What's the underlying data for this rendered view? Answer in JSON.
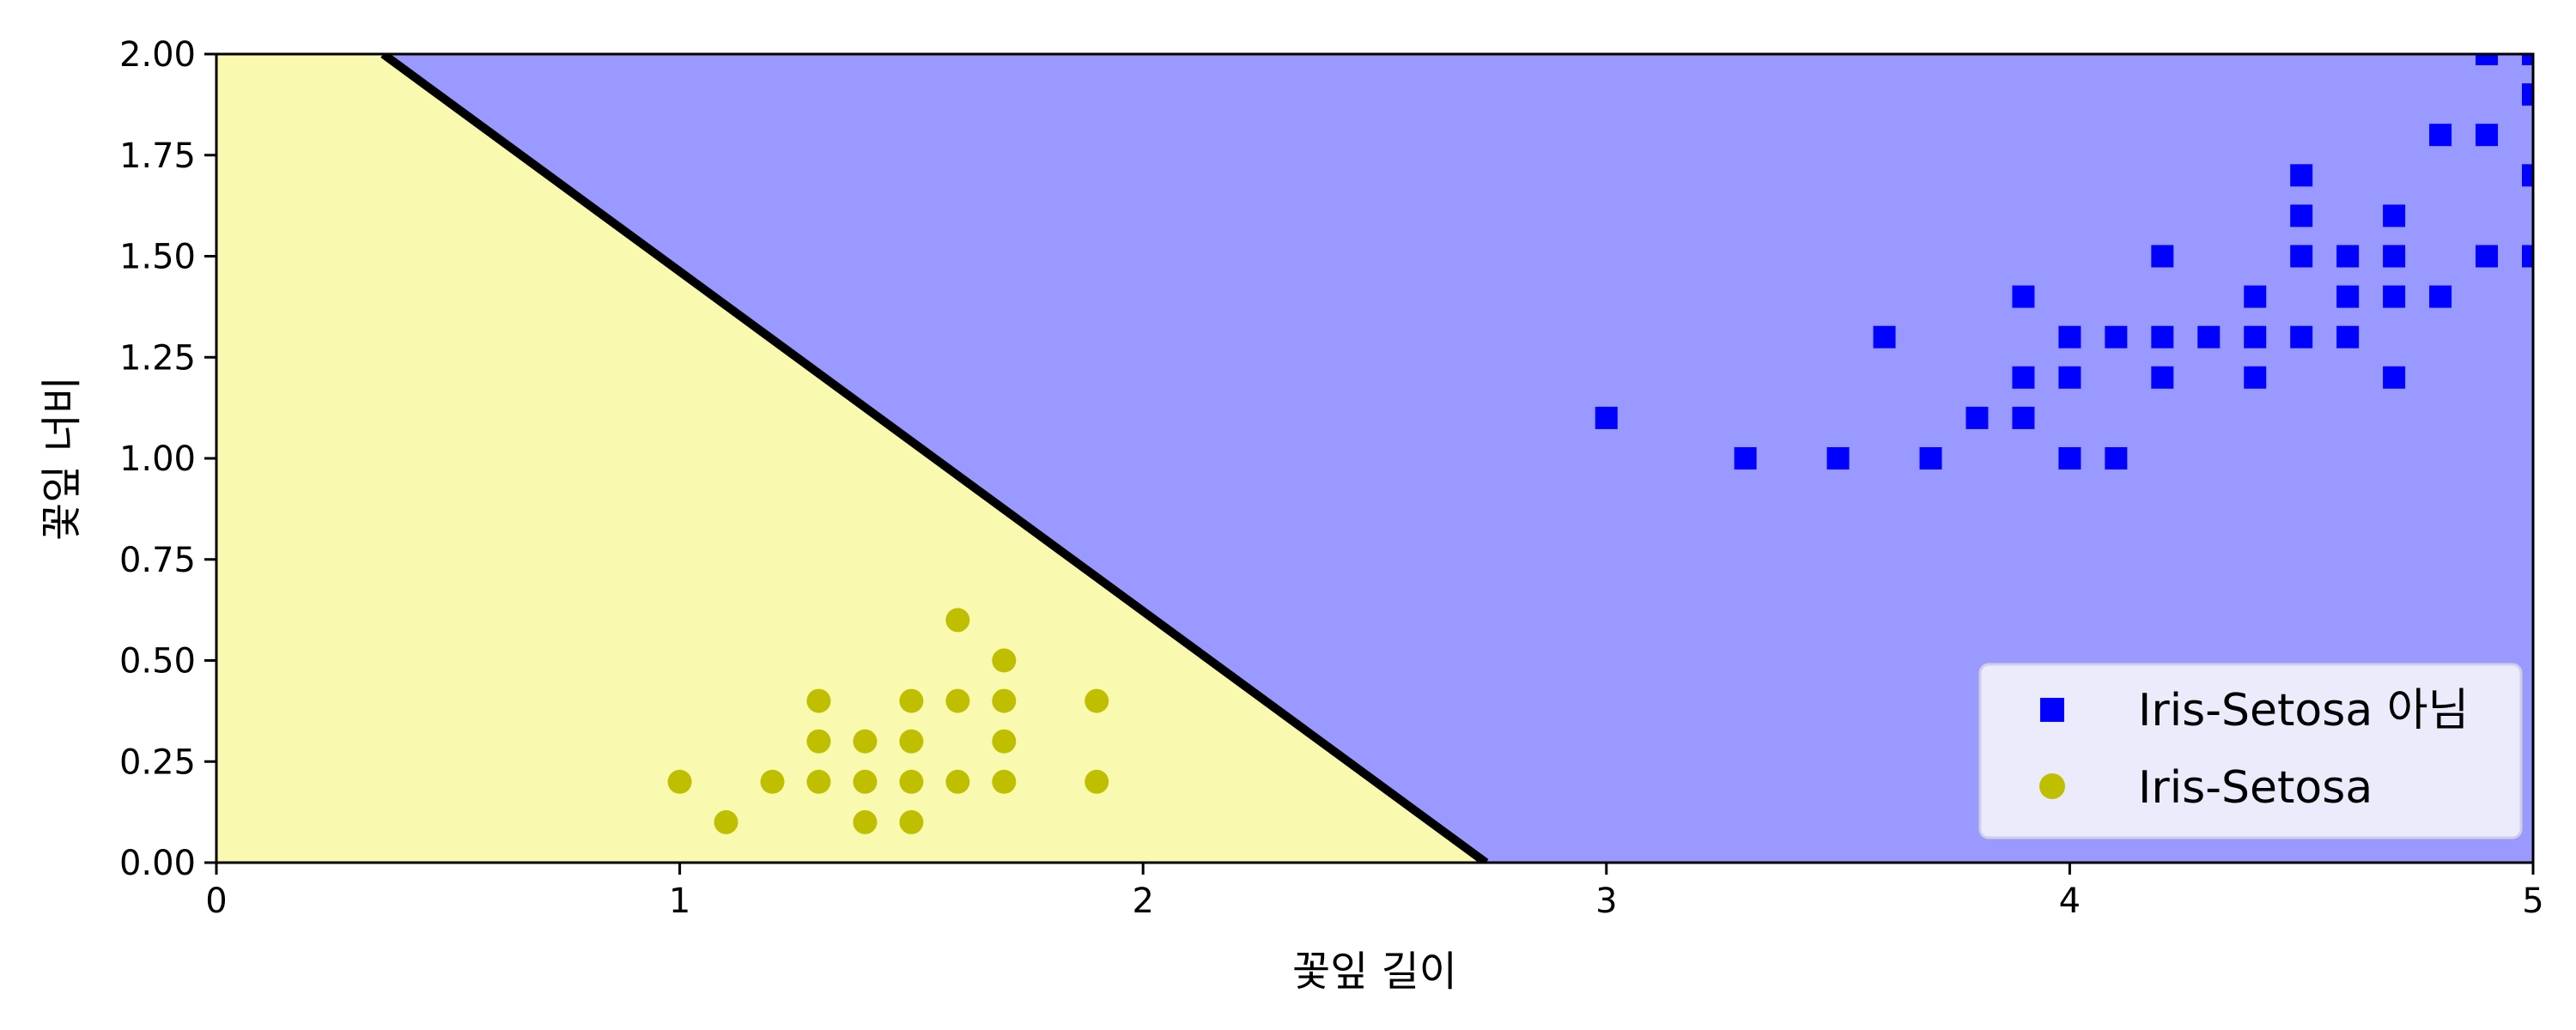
{
  "chart_data": {
    "type": "scatter",
    "title": "",
    "xlabel": "꽃잎 길이",
    "ylabel": "꽃잎 너비",
    "xlim": [
      0,
      5
    ],
    "ylim": [
      0,
      2
    ],
    "x_ticks": [
      0,
      1,
      2,
      3,
      4,
      5
    ],
    "x_tick_labels": [
      "0",
      "1",
      "2",
      "3",
      "4",
      "5"
    ],
    "y_ticks": [
      0,
      0.25,
      0.5,
      0.75,
      1.0,
      1.25,
      1.5,
      1.75,
      2.0
    ],
    "y_tick_labels": [
      "0.00",
      "0.25",
      "0.50",
      "0.75",
      "1.00",
      "1.25",
      "1.50",
      "1.75",
      "2.00"
    ],
    "grid": false,
    "legend_position": "bottom-right",
    "decision_boundary": {
      "x": [
        0.36,
        2.74
      ],
      "y": [
        2.0,
        0.0
      ],
      "color": "#000000"
    },
    "regions": [
      {
        "side": "below-left",
        "color": "#f9f9b0"
      },
      {
        "side": "above-right",
        "color": "#9999ff"
      }
    ],
    "series": [
      {
        "name": "Iris-Setosa 아님",
        "marker": "square",
        "color": "#0000ff",
        "points": [
          [
            3.0,
            1.1
          ],
          [
            3.3,
            1.0
          ],
          [
            3.5,
            1.0
          ],
          [
            3.6,
            1.3
          ],
          [
            3.7,
            1.0
          ],
          [
            3.8,
            1.1
          ],
          [
            3.9,
            1.1
          ],
          [
            3.9,
            1.2
          ],
          [
            3.9,
            1.4
          ],
          [
            4.0,
            1.0
          ],
          [
            4.0,
            1.2
          ],
          [
            4.0,
            1.3
          ],
          [
            4.1,
            1.0
          ],
          [
            4.1,
            1.3
          ],
          [
            4.2,
            1.2
          ],
          [
            4.2,
            1.3
          ],
          [
            4.2,
            1.5
          ],
          [
            4.3,
            1.3
          ],
          [
            4.4,
            1.2
          ],
          [
            4.4,
            1.3
          ],
          [
            4.4,
            1.4
          ],
          [
            4.5,
            1.3
          ],
          [
            4.5,
            1.5
          ],
          [
            4.5,
            1.6
          ],
          [
            4.5,
            1.7
          ],
          [
            4.6,
            1.3
          ],
          [
            4.6,
            1.4
          ],
          [
            4.6,
            1.5
          ],
          [
            4.7,
            1.2
          ],
          [
            4.7,
            1.4
          ],
          [
            4.7,
            1.5
          ],
          [
            4.7,
            1.6
          ],
          [
            4.8,
            1.4
          ],
          [
            4.8,
            1.8
          ],
          [
            4.9,
            1.5
          ],
          [
            4.9,
            1.8
          ],
          [
            4.9,
            2.0
          ],
          [
            5.0,
            1.5
          ],
          [
            5.0,
            1.7
          ],
          [
            5.0,
            1.9
          ],
          [
            5.0,
            2.0
          ]
        ]
      },
      {
        "name": "Iris-Setosa",
        "marker": "circle",
        "color": "#bfbf00",
        "points": [
          [
            1.0,
            0.2
          ],
          [
            1.1,
            0.1
          ],
          [
            1.2,
            0.2
          ],
          [
            1.3,
            0.2
          ],
          [
            1.3,
            0.3
          ],
          [
            1.3,
            0.4
          ],
          [
            1.4,
            0.1
          ],
          [
            1.4,
            0.2
          ],
          [
            1.4,
            0.3
          ],
          [
            1.5,
            0.1
          ],
          [
            1.5,
            0.2
          ],
          [
            1.5,
            0.3
          ],
          [
            1.5,
            0.4
          ],
          [
            1.6,
            0.2
          ],
          [
            1.6,
            0.4
          ],
          [
            1.6,
            0.6
          ],
          [
            1.7,
            0.2
          ],
          [
            1.7,
            0.3
          ],
          [
            1.7,
            0.4
          ],
          [
            1.7,
            0.5
          ],
          [
            1.9,
            0.2
          ],
          [
            1.9,
            0.4
          ]
        ]
      }
    ]
  }
}
